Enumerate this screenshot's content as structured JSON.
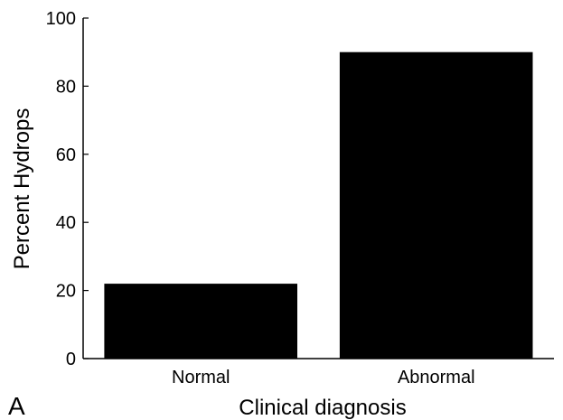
{
  "panel_label": "A",
  "colors": {
    "bar": "#000000",
    "axis": "#000000",
    "background": "#ffffff"
  },
  "chart_data": {
    "type": "bar",
    "categories": [
      "Normal",
      "Abnormal"
    ],
    "values": [
      22,
      90
    ],
    "title": "",
    "xlabel": "Clinical diagnosis",
    "ylabel": "Percent Hydrops",
    "ylim": [
      0,
      100
    ],
    "yticks": [
      0,
      20,
      40,
      60,
      80,
      100
    ],
    "grid": false,
    "legend": "none"
  }
}
